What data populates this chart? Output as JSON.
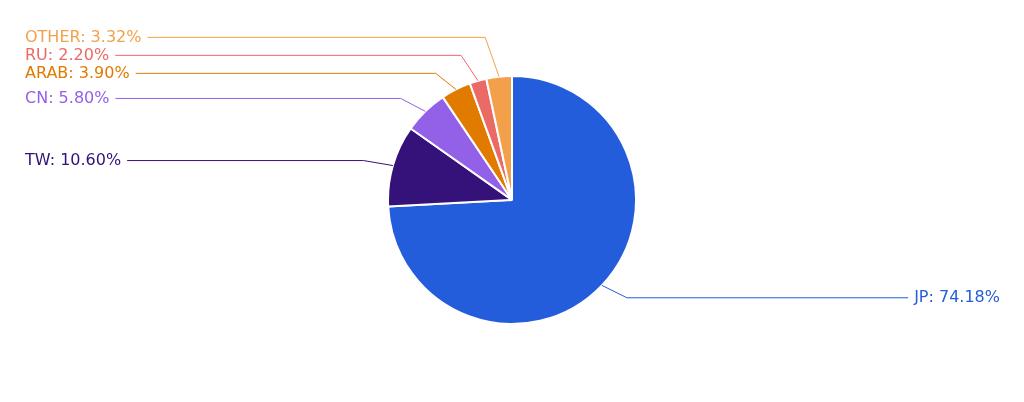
{
  "chart_data": {
    "type": "pie",
    "categories": [
      "JP",
      "TW",
      "CN",
      "ARAB",
      "RU",
      "OTHER"
    ],
    "values": [
      74.18,
      10.6,
      5.8,
      3.9,
      2.2,
      3.32
    ],
    "value_labels": [
      "74.18%",
      "10.60%",
      "5.80%",
      "3.90%",
      "2.20%",
      "3.32%"
    ],
    "colors": [
      "#245ddb",
      "#35117a",
      "#9360e8",
      "#e07b00",
      "#ec6a66",
      "#f2a14a"
    ],
    "legend": false
  }
}
